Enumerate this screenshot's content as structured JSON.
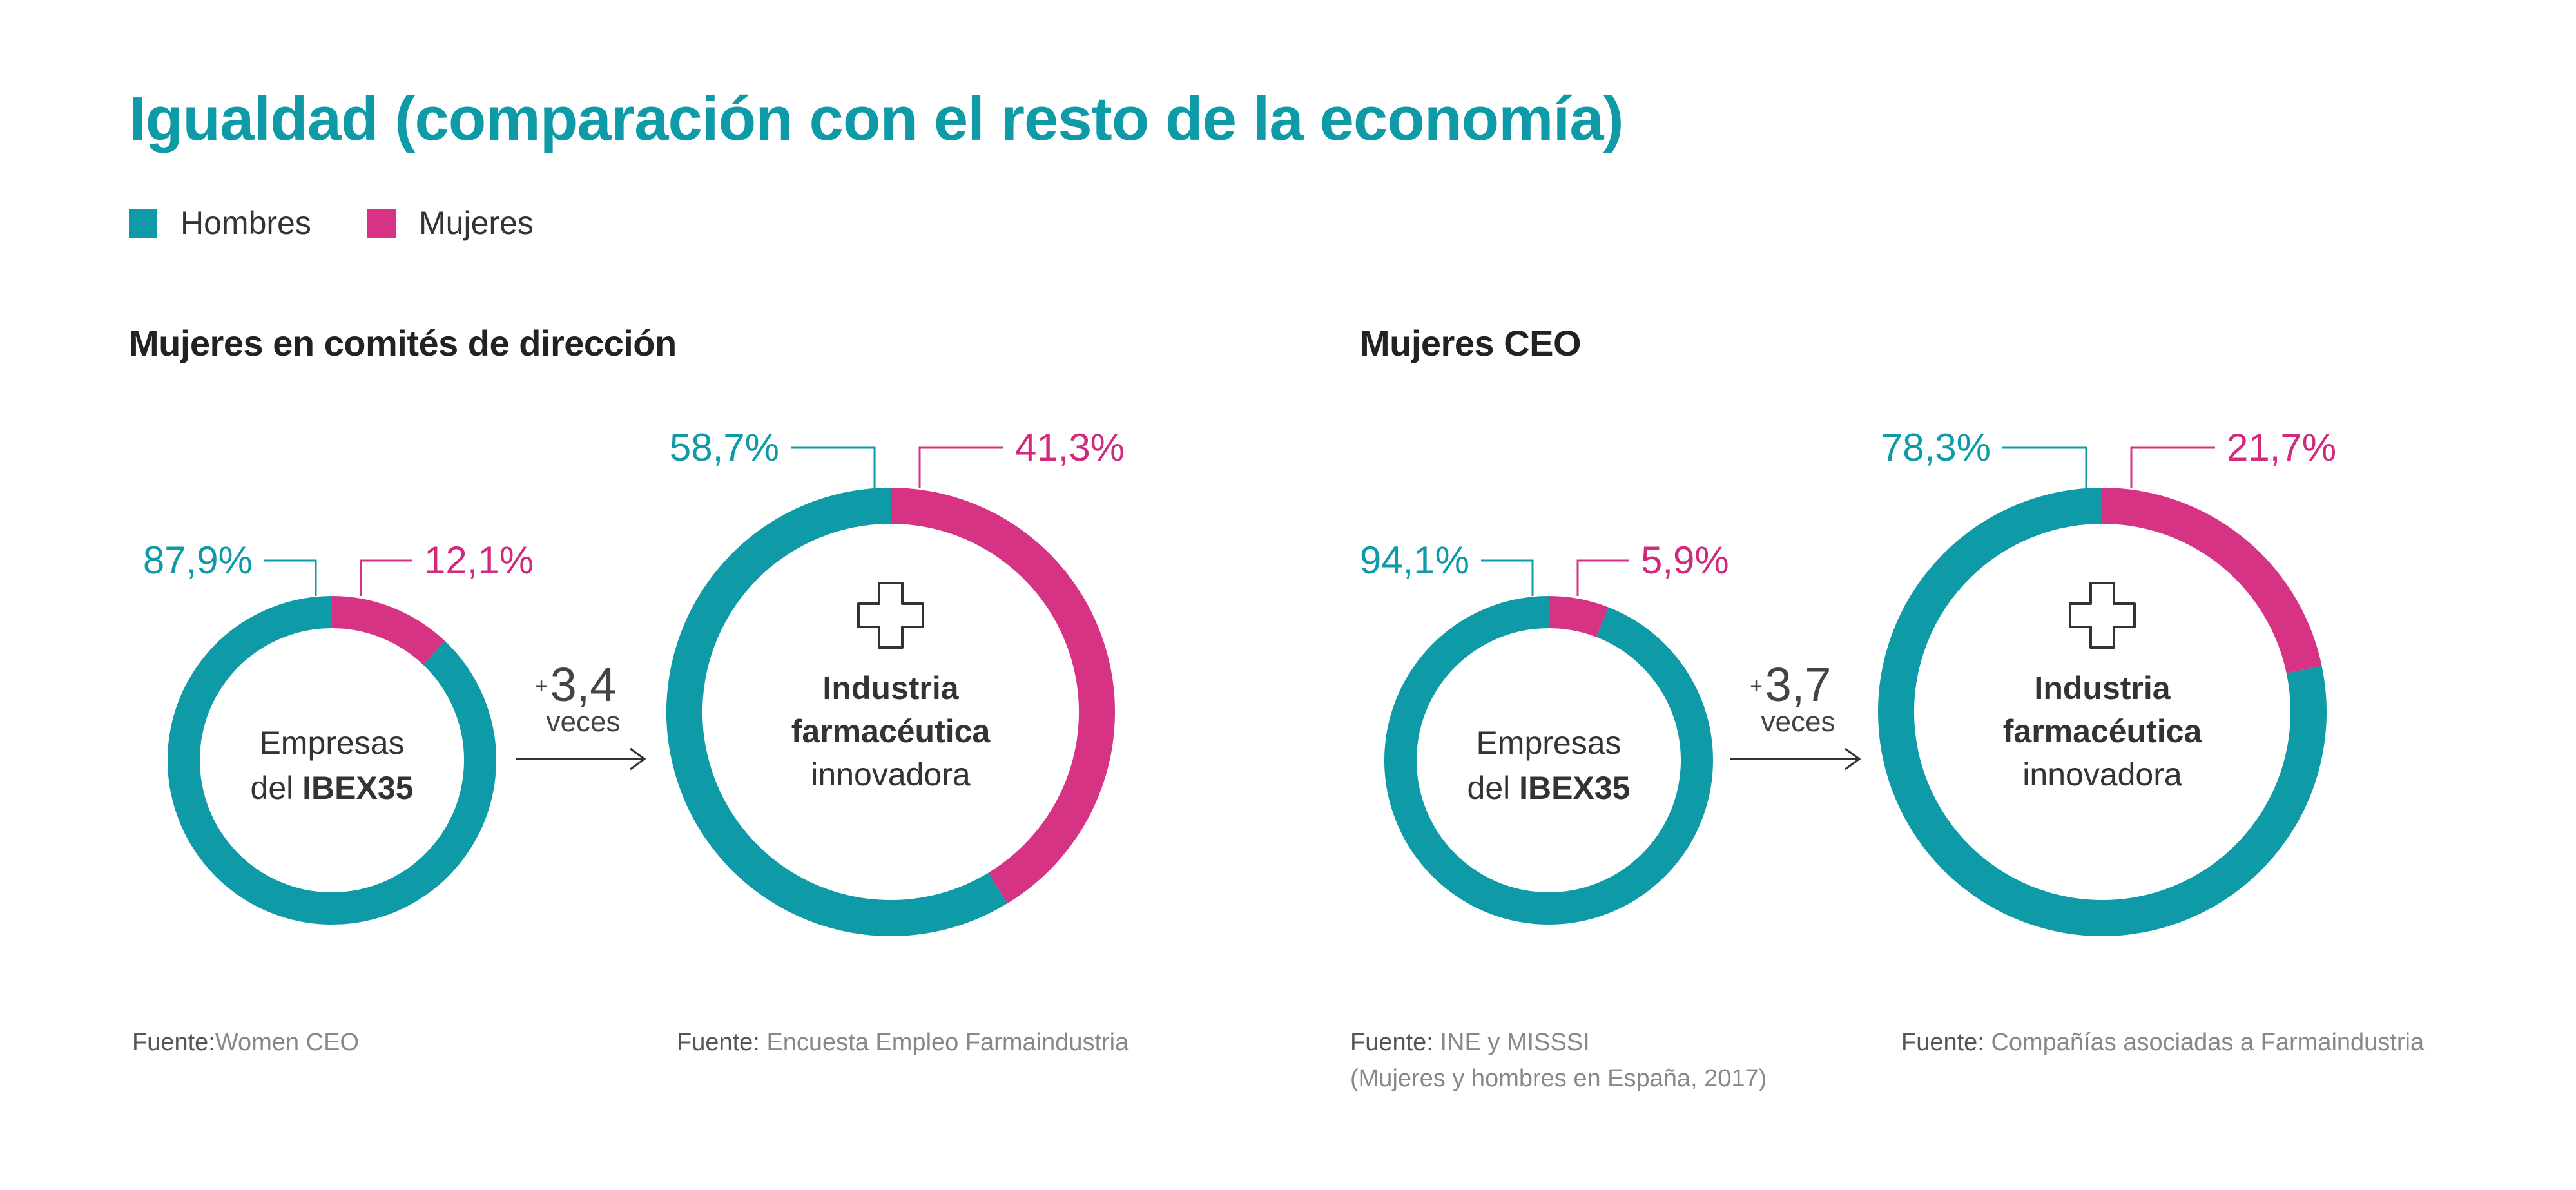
{
  "title": "Igualdad (comparación con el resto de la economía)",
  "legend": [
    {
      "label": "Hombres",
      "color": "#0e9aa7"
    },
    {
      "label": "Mujeres",
      "color": "#d63384"
    }
  ],
  "colors": {
    "men": "#0e9aa7",
    "women": "#d63384",
    "men_text": "#0e9aa7",
    "women_text": "#cf2a7d"
  },
  "sections": [
    {
      "title": "Mujeres en comités de dirección",
      "multiplier": {
        "prefix": "+",
        "value": "3,4",
        "unit": "veces"
      },
      "sources": [
        {
          "label": "Fuente:",
          "text": "Women CEO"
        },
        {
          "label": "Fuente:",
          "text": "Encuesta Empleo Farmaindustria"
        }
      ]
    },
    {
      "title": "Mujeres CEO",
      "multiplier": {
        "prefix": "+",
        "value": "3,7",
        "unit": "veces"
      },
      "sources": [
        {
          "label": "Fuente:",
          "text": "INE y MISSSI",
          "text2": "(Mujeres y hombres en España, 2017)"
        },
        {
          "label": "Fuente:",
          "text": "Compañías asociadas a Farmaindustria"
        }
      ]
    }
  ],
  "chart_data": [
    {
      "type": "pie",
      "title": "Mujeres en comités de dirección — Empresas del IBEX35",
      "center_label": [
        "Empresas",
        "del ",
        "IBEX35"
      ],
      "series": [
        {
          "name": "Hombres",
          "value": 87.9,
          "label": "87,9%"
        },
        {
          "name": "Mujeres",
          "value": 12.1,
          "label": "12,1%"
        }
      ]
    },
    {
      "type": "pie",
      "title": "Mujeres en comités de dirección — Industria farmacéutica innovadora",
      "center_label": [
        "Industria",
        "farmacéutica",
        "innovadora"
      ],
      "series": [
        {
          "name": "Hombres",
          "value": 58.7,
          "label": "58,7%"
        },
        {
          "name": "Mujeres",
          "value": 41.3,
          "label": "41,3%"
        }
      ]
    },
    {
      "type": "pie",
      "title": "Mujeres CEO — Empresas del IBEX35",
      "center_label": [
        "Empresas",
        "del ",
        "IBEX35"
      ],
      "series": [
        {
          "name": "Hombres",
          "value": 94.1,
          "label": "94,1%"
        },
        {
          "name": "Mujeres",
          "value": 5.9,
          "label": "5,9%"
        }
      ]
    },
    {
      "type": "pie",
      "title": "Mujeres CEO — Industria farmacéutica innovadora",
      "center_label": [
        "Industria",
        "farmacéutica",
        "innovadora"
      ],
      "series": [
        {
          "name": "Hombres",
          "value": 78.3,
          "label": "78,3%"
        },
        {
          "name": "Mujeres",
          "value": 21.7,
          "label": "21,7%"
        }
      ]
    }
  ]
}
